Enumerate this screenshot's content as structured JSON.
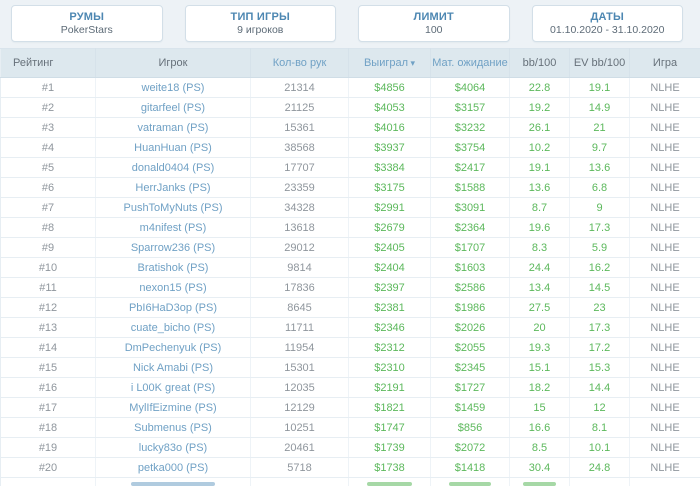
{
  "filters": [
    {
      "label": "РУМЫ",
      "value": "PokerStars"
    },
    {
      "label": "ТИП ИГРЫ",
      "value": "9 игроков"
    },
    {
      "label": "ЛИМИТ",
      "value": "100"
    },
    {
      "label": "ДАТЫ",
      "value": "01.10.2020 - 31.10.2020"
    }
  ],
  "table": {
    "sort_arrow": "▾",
    "partial_next_row": true,
    "columns": [
      {
        "key": "rank",
        "label": "Рейтинг",
        "sortable": false
      },
      {
        "key": "player",
        "label": "Игрок",
        "sortable": false
      },
      {
        "key": "hands",
        "label": "Кол-во рук",
        "sortable": true
      },
      {
        "key": "won",
        "label": "Выиграл",
        "sortable": true,
        "sorted": "desc"
      },
      {
        "key": "ev_won",
        "label": "Мат. ожидание",
        "sortable": true
      },
      {
        "key": "bb100",
        "label": "bb/100",
        "sortable": false
      },
      {
        "key": "evbb100",
        "label": "EV bb/100",
        "sortable": false
      },
      {
        "key": "game",
        "label": "Игра",
        "sortable": false
      }
    ],
    "rows": [
      {
        "rank": "#1",
        "player": "weite18 (PS)",
        "hands": "21314",
        "won": "$4856",
        "ev_won": "$4064",
        "bb100": "22.8",
        "evbb100": "19.1",
        "game": "NLHE"
      },
      {
        "rank": "#2",
        "player": "gitarfeel (PS)",
        "hands": "21125",
        "won": "$4053",
        "ev_won": "$3157",
        "bb100": "19.2",
        "evbb100": "14.9",
        "game": "NLHE"
      },
      {
        "rank": "#3",
        "player": "vatraman (PS)",
        "hands": "15361",
        "won": "$4016",
        "ev_won": "$3232",
        "bb100": "26.1",
        "evbb100": "21",
        "game": "NLHE"
      },
      {
        "rank": "#4",
        "player": "HuanHuan (PS)",
        "hands": "38568",
        "won": "$3937",
        "ev_won": "$3754",
        "bb100": "10.2",
        "evbb100": "9.7",
        "game": "NLHE"
      },
      {
        "rank": "#5",
        "player": "donald0404 (PS)",
        "hands": "17707",
        "won": "$3384",
        "ev_won": "$2417",
        "bb100": "19.1",
        "evbb100": "13.6",
        "game": "NLHE"
      },
      {
        "rank": "#6",
        "player": "HerrJanks (PS)",
        "hands": "23359",
        "won": "$3175",
        "ev_won": "$1588",
        "bb100": "13.6",
        "evbb100": "6.8",
        "game": "NLHE"
      },
      {
        "rank": "#7",
        "player": "PushToMyNuts (PS)",
        "hands": "34328",
        "won": "$2991",
        "ev_won": "$3091",
        "bb100": "8.7",
        "evbb100": "9",
        "game": "NLHE"
      },
      {
        "rank": "#8",
        "player": "m4nifest (PS)",
        "hands": "13618",
        "won": "$2679",
        "ev_won": "$2364",
        "bb100": "19.6",
        "evbb100": "17.3",
        "game": "NLHE"
      },
      {
        "rank": "#9",
        "player": "Sparrow236 (PS)",
        "hands": "29012",
        "won": "$2405",
        "ev_won": "$1707",
        "bb100": "8.3",
        "evbb100": "5.9",
        "game": "NLHE"
      },
      {
        "rank": "#10",
        "player": "Bratishok (PS)",
        "hands": "9814",
        "won": "$2404",
        "ev_won": "$1603",
        "bb100": "24.4",
        "evbb100": "16.2",
        "game": "NLHE"
      },
      {
        "rank": "#11",
        "player": "nexon15 (PS)",
        "hands": "17836",
        "won": "$2397",
        "ev_won": "$2586",
        "bb100": "13.4",
        "evbb100": "14.5",
        "game": "NLHE"
      },
      {
        "rank": "#12",
        "player": "PbI6HaD3op (PS)",
        "hands": "8645",
        "won": "$2381",
        "ev_won": "$1986",
        "bb100": "27.5",
        "evbb100": "23",
        "game": "NLHE"
      },
      {
        "rank": "#13",
        "player": "cuate_bicho (PS)",
        "hands": "11711",
        "won": "$2346",
        "ev_won": "$2026",
        "bb100": "20",
        "evbb100": "17.3",
        "game": "NLHE"
      },
      {
        "rank": "#14",
        "player": "DmPechenyuk (PS)",
        "hands": "11954",
        "won": "$2312",
        "ev_won": "$2055",
        "bb100": "19.3",
        "evbb100": "17.2",
        "game": "NLHE"
      },
      {
        "rank": "#15",
        "player": "Nick Amabi (PS)",
        "hands": "15301",
        "won": "$2310",
        "ev_won": "$2345",
        "bb100": "15.1",
        "evbb100": "15.3",
        "game": "NLHE"
      },
      {
        "rank": "#16",
        "player": "i L00K great (PS)",
        "hands": "12035",
        "won": "$2191",
        "ev_won": "$1727",
        "bb100": "18.2",
        "evbb100": "14.4",
        "game": "NLHE"
      },
      {
        "rank": "#17",
        "player": "MylIfEizmine (PS)",
        "hands": "12129",
        "won": "$1821",
        "ev_won": "$1459",
        "bb100": "15",
        "evbb100": "12",
        "game": "NLHE"
      },
      {
        "rank": "#18",
        "player": "Submenus (PS)",
        "hands": "10251",
        "won": "$1747",
        "ev_won": "$856",
        "bb100": "16.6",
        "evbb100": "8.1",
        "game": "NLHE"
      },
      {
        "rank": "#19",
        "player": "lucky83o (PS)",
        "hands": "20461",
        "won": "$1739",
        "ev_won": "$2072",
        "bb100": "8.5",
        "evbb100": "10.1",
        "game": "NLHE"
      },
      {
        "rank": "#20",
        "player": "petka000 (PS)",
        "hands": "5718",
        "won": "$1738",
        "ev_won": "$1418",
        "bb100": "30.4",
        "evbb100": "24.8",
        "game": "NLHE"
      }
    ]
  },
  "colors": {
    "page_bg": "#edf2f6",
    "accent_blue": "#4d87b2",
    "link_blue": "#70a1c5",
    "positive_green": "#5cb85c",
    "muted_gray": "#8f969d",
    "header_bg": "#dde8ee"
  }
}
